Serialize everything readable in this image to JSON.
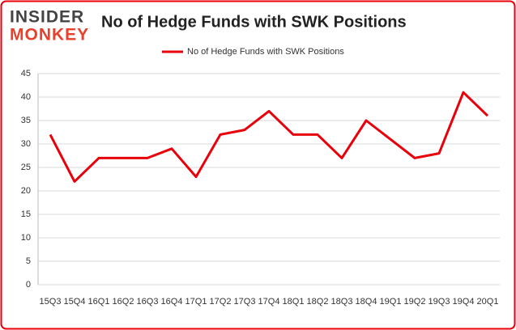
{
  "logo": {
    "top": "INSIDER",
    "bottom": "MONKEY"
  },
  "chart_data": {
    "type": "line",
    "title": "No of Hedge Funds with SWK Positions",
    "categories": [
      "15Q3",
      "15Q4",
      "16Q1",
      "16Q2",
      "16Q3",
      "16Q4",
      "17Q1",
      "17Q2",
      "17Q3",
      "17Q4",
      "18Q1",
      "18Q2",
      "18Q3",
      "18Q4",
      "19Q1",
      "19Q2",
      "19Q3",
      "19Q4",
      "20Q1"
    ],
    "series": [
      {
        "name": "No of Hedge Funds with SWK Positions",
        "color": "#e8000b",
        "values": [
          32,
          22,
          27,
          27,
          27,
          29,
          23,
          32,
          33,
          37,
          32,
          32,
          27,
          35,
          31,
          27,
          28,
          41,
          36
        ]
      }
    ],
    "ylim": [
      0,
      45
    ],
    "yticks": [
      0,
      5,
      10,
      15,
      20,
      25,
      30,
      35,
      40,
      45
    ],
    "grid": true,
    "legend": "top"
  }
}
